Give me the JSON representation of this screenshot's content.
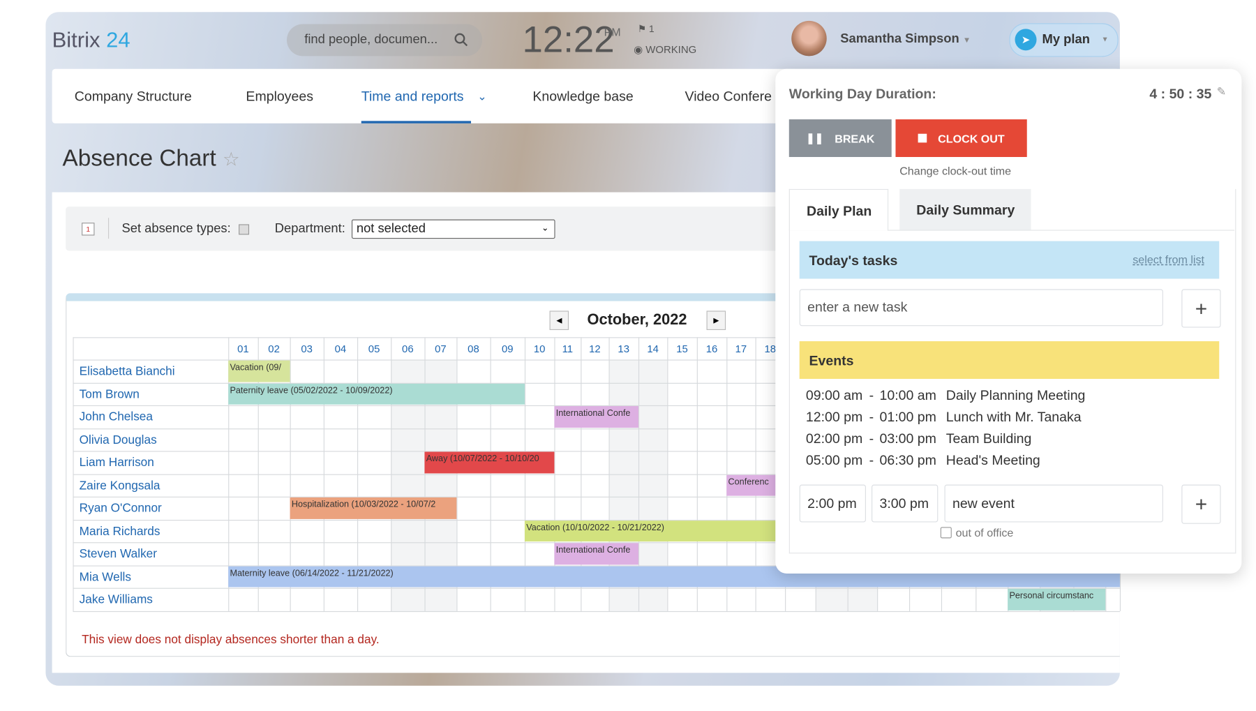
{
  "header": {
    "logo": "Bitrix",
    "logo_number": "24",
    "search_placeholder": "find people, documen...",
    "time": "12:22",
    "meridiem": "PM",
    "flag_count": "1",
    "status": "WORKING",
    "user_name": "Samantha Simpson",
    "plan_button": "My plan"
  },
  "nav": [
    "Company Structure",
    "Employees",
    "Time and reports",
    "Knowledge base",
    "Video Confere"
  ],
  "page_title": "Absence Chart",
  "toolbar": {
    "absence_types": "Set absence types:",
    "department": "Department:",
    "department_value": "not selected"
  },
  "calendar": {
    "month": "October, 2022",
    "days": [
      "01",
      "02",
      "03",
      "04",
      "05",
      "06",
      "07",
      "08",
      "09",
      "10",
      "11",
      "12",
      "13",
      "14",
      "15",
      "16",
      "17",
      "18"
    ],
    "rows": [
      {
        "name": "Elisabetta Bianchi",
        "absence": {
          "label": "Vacation (09/",
          "color": "#d6e49c"
        }
      },
      {
        "name": "Tom Brown",
        "absence": {
          "label": "Paternity leave (05/02/2022 - 10/09/2022)",
          "color": "#aadcd3"
        }
      },
      {
        "name": "John Chelsea",
        "absence": {
          "label": "International Confe",
          "color": "#ddb0e2"
        }
      },
      {
        "name": "Olivia Douglas"
      },
      {
        "name": "Liam Harrison",
        "absence": {
          "label": "Away (10/07/2022 - 10/10/20",
          "color": "#e2484a"
        }
      },
      {
        "name": "Zaire Kongsala",
        "absence": {
          "label": "Conferenc",
          "color": "#ddb0e2"
        }
      },
      {
        "name": "Ryan O'Connor",
        "absence": {
          "label": "Hospitalization (10/03/2022 - 10/07/2",
          "color": "#eba27e"
        }
      },
      {
        "name": "Maria Richards",
        "absence": {
          "label": "Vacation (10/10/2022 - 10/21/2022)",
          "color": "#d2e27e"
        }
      },
      {
        "name": "Steven Walker",
        "absence": {
          "label": "International Confe",
          "color": "#ddb0e2"
        }
      },
      {
        "name": "Mia Wells",
        "absence": {
          "label": "Maternity leave (06/14/2022 - 11/21/2022)",
          "color": "#abc5ef"
        }
      },
      {
        "name": "Jake Williams",
        "absence": {
          "label": "Personal circumstanc",
          "color": "#aadcd3"
        }
      }
    ],
    "note": "This view does not display absences shorter than a day."
  },
  "panel": {
    "duration_label": "Working Day Duration:",
    "duration": "4 : 50 : 35",
    "break": "BREAK",
    "clock_out": "CLOCK OUT",
    "change_time": "Change clock-out time",
    "tabs": [
      "Daily Plan",
      "Daily Summary"
    ],
    "tasks_title": "Today's tasks",
    "select_from_list": "select from list",
    "task_placeholder": "enter a new task",
    "events_title": "Events",
    "events": [
      {
        "start": "09:00 am",
        "end": "10:00 am",
        "title": "Daily Planning Meeting"
      },
      {
        "start": "12:00 pm",
        "end": "01:00 pm",
        "title": "Lunch with Mr. Tanaka"
      },
      {
        "start": "02:00 pm",
        "end": "03:00 pm",
        "title": "Team Building"
      },
      {
        "start": "05:00 pm",
        "end": "06:30 pm",
        "title": "Head's Meeting"
      }
    ],
    "new_event": {
      "start": "2:00 pm",
      "end": "3:00 pm",
      "title": "new event",
      "out_of_office": "out of office"
    }
  }
}
